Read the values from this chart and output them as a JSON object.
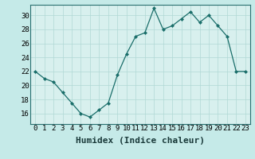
{
  "x": [
    0,
    1,
    2,
    3,
    4,
    5,
    6,
    7,
    8,
    9,
    10,
    11,
    12,
    13,
    14,
    15,
    16,
    17,
    18,
    19,
    20,
    21,
    22,
    23
  ],
  "y": [
    22,
    21,
    20.5,
    19,
    17.5,
    16,
    15.5,
    16.5,
    17.5,
    21.5,
    24.5,
    27,
    27.5,
    31,
    28,
    28.5,
    29.5,
    30.5,
    29,
    30,
    28.5,
    27,
    22,
    22
  ],
  "line_color": "#1a6e6a",
  "marker_color": "#1a6e6a",
  "bg_color": "#c5eae8",
  "plot_bg_color": "#d8f0ee",
  "grid_color": "#b0d8d5",
  "xlabel": "Humidex (Indice chaleur)",
  "xlim": [
    -0.5,
    23.5
  ],
  "ylim": [
    14.5,
    31.5
  ],
  "yticks": [
    16,
    18,
    20,
    22,
    24,
    26,
    28,
    30
  ],
  "xticks": [
    0,
    1,
    2,
    3,
    4,
    5,
    6,
    7,
    8,
    9,
    10,
    11,
    12,
    13,
    14,
    15,
    16,
    17,
    18,
    19,
    20,
    21,
    22,
    23
  ],
  "xlabel_fontsize": 8,
  "tick_fontsize": 6.5
}
